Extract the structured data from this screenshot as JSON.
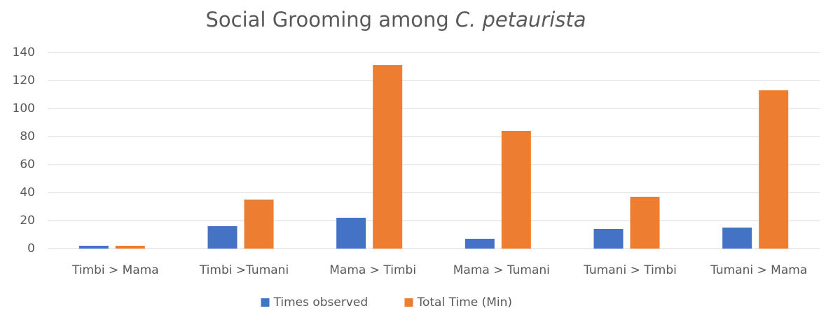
{
  "chart_data": {
    "type": "bar",
    "title": [
      "Social Grooming among",
      "C. petaurista"
    ],
    "categories": [
      "Timbi > Mama",
      "Timbi  >Tumani",
      "Mama > Timbi",
      "Mama > Tumani",
      "Tumani > Timbi",
      "Tumani > Mama"
    ],
    "series": [
      {
        "name": "Times observed",
        "color": "#4472c4",
        "values": [
          2,
          16,
          22,
          7,
          14,
          15
        ]
      },
      {
        "name": "Total Time (Min)",
        "color": "#ed7d31",
        "values": [
          2,
          35,
          131,
          84,
          37,
          113
        ]
      }
    ],
    "ylim": [
      0,
      140
    ],
    "yticks": [
      0,
      20,
      40,
      60,
      80,
      100,
      120,
      140
    ],
    "grid": true,
    "legend": "bottom"
  }
}
